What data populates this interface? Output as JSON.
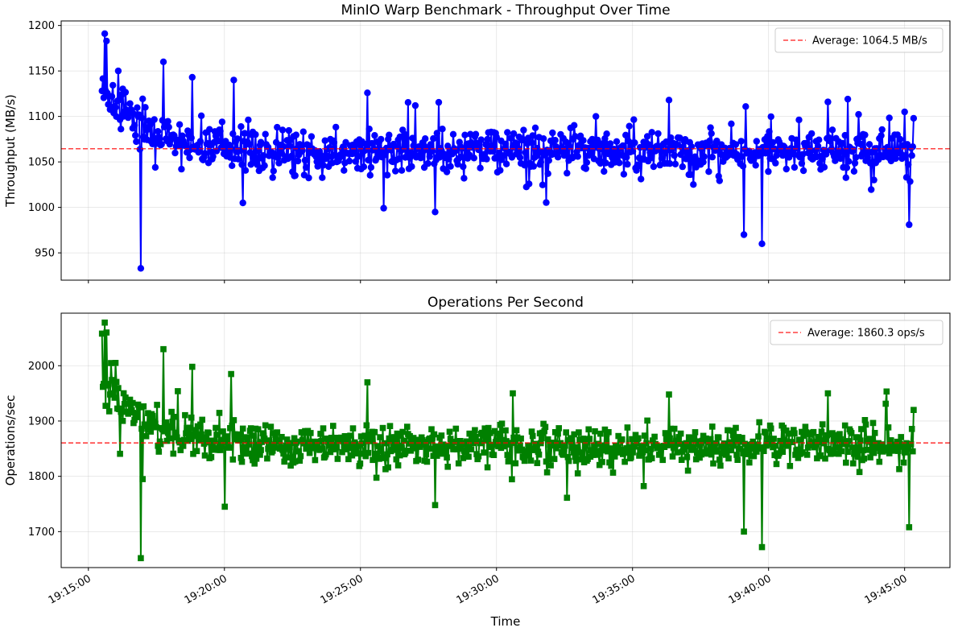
{
  "chart_data": [
    {
      "type": "line",
      "title": "MinIO Warp Benchmark - Throughput Over Time",
      "ylabel": "Throughput (MB/s)",
      "xlabel": "",
      "xlim": [
        "19:14:00",
        "19:46:40"
      ],
      "ylim": [
        920,
        1205
      ],
      "yticks": [
        950,
        1000,
        1050,
        1100,
        1150,
        1200
      ],
      "grid": true,
      "legend_position": "top-right",
      "average": {
        "value": 1064.5,
        "label": "Average: 1064.5 MB/s",
        "color": "#ff0000"
      },
      "series": [
        {
          "color": "#0000ff",
          "marker": "circle",
          "start": "19:15:30",
          "end": "19:45:20",
          "count": 900,
          "baseline": 1062,
          "early_peak": 1191,
          "min": 933,
          "max": 1191,
          "notable_points": [
            [
              "19:15:35",
              1191
            ],
            [
              "19:15:40",
              1183
            ],
            [
              "19:16:05",
              1150
            ],
            [
              "19:16:55",
              933
            ],
            [
              "19:17:05",
              1110
            ],
            [
              "19:17:45",
              1160
            ],
            [
              "19:18:50",
              1143
            ],
            [
              "19:20:20",
              1140
            ],
            [
              "19:20:40",
              1005
            ],
            [
              "19:25:15",
              1126
            ],
            [
              "19:27:45",
              1121
            ],
            [
              "19:27:45",
              995
            ],
            [
              "19:36:20",
              1118
            ],
            [
              "19:39:05",
              970
            ],
            [
              "19:39:45",
              960
            ],
            [
              "19:42:10",
              1116
            ],
            [
              "19:45:00",
              1105
            ],
            [
              "19:45:10",
              981
            ],
            [
              "19:45:20",
              1098
            ]
          ]
        }
      ]
    },
    {
      "type": "line",
      "title": "Operations Per Second",
      "ylabel": "Operations/sec",
      "xlabel": "Time",
      "xlim": [
        "19:14:00",
        "19:46:40"
      ],
      "ylim": [
        1635,
        2095
      ],
      "yticks": [
        1700,
        1800,
        1900,
        2000
      ],
      "xticks": [
        "19:15:00",
        "19:20:00",
        "19:25:00",
        "19:30:00",
        "19:35:00",
        "19:40:00",
        "19:45:00"
      ],
      "grid": true,
      "legend_position": "top-right",
      "average": {
        "value": 1860.3,
        "label": "Average: 1860.3 ops/s",
        "color": "#ff0000"
      },
      "series": [
        {
          "color": "#008000",
          "marker": "square",
          "start": "19:15:30",
          "end": "19:45:20",
          "count": 900,
          "baseline": 1855,
          "early_peak": 2078,
          "min": 1652,
          "max": 2078,
          "notable_points": [
            [
              "19:15:35",
              2078
            ],
            [
              "19:15:40",
              2060
            ],
            [
              "19:16:00",
              2005
            ],
            [
              "19:16:55",
              1652
            ],
            [
              "19:17:00",
              1795
            ],
            [
              "19:17:45",
              2030
            ],
            [
              "19:18:50",
              1998
            ],
            [
              "19:20:15",
              1985
            ],
            [
              "19:20:00",
              1745
            ],
            [
              "19:25:15",
              1970
            ],
            [
              "19:27:45",
              1962
            ],
            [
              "19:27:45",
              1748
            ],
            [
              "19:30:35",
              1950
            ],
            [
              "19:36:20",
              1948
            ],
            [
              "19:39:05",
              1700
            ],
            [
              "19:39:45",
              1672
            ],
            [
              "19:42:10",
              1950
            ],
            [
              "19:45:10",
              1708
            ],
            [
              "19:45:20",
              1920
            ]
          ]
        }
      ]
    }
  ]
}
